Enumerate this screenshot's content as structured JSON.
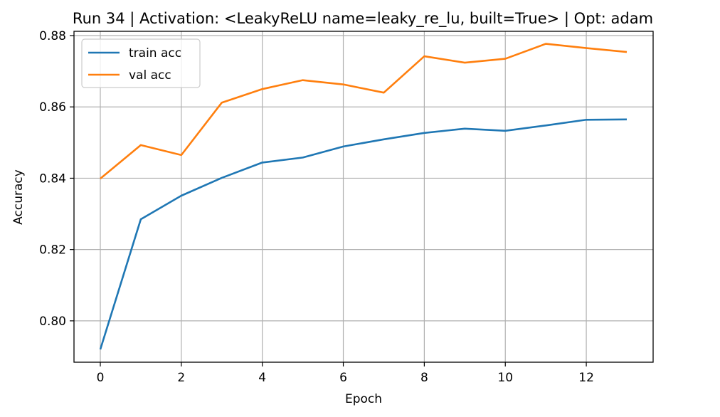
{
  "chart_data": {
    "type": "line",
    "title": "Run 34 | Activation: <LeakyReLU name=leaky_re_lu, built=True> | Opt: adam",
    "xlabel": "Epoch",
    "ylabel": "Accuracy",
    "x": [
      0,
      1,
      2,
      3,
      4,
      5,
      6,
      7,
      8,
      9,
      10,
      11,
      12,
      13
    ],
    "xlim": [
      -0.65,
      13.65
    ],
    "ylim": [
      0.7884,
      0.8812
    ],
    "xticks": [
      0,
      2,
      4,
      6,
      8,
      10,
      12
    ],
    "yticks": [
      0.8,
      0.82,
      0.84,
      0.86,
      0.88
    ],
    "xtick_labels": [
      "0",
      "2",
      "4",
      "6",
      "8",
      "10",
      "12"
    ],
    "ytick_labels": [
      "0.80",
      "0.82",
      "0.84",
      "0.86",
      "0.88"
    ],
    "grid": true,
    "legend_position": "top-left",
    "series": [
      {
        "name": "train acc",
        "color": "#1f77b4",
        "values": [
          0.792,
          0.8285,
          0.8351,
          0.8401,
          0.8444,
          0.8458,
          0.8489,
          0.8509,
          0.8527,
          0.8539,
          0.8533,
          0.8548,
          0.8564,
          0.8565
        ]
      },
      {
        "name": "val acc",
        "color": "#ff7f0e",
        "values": [
          0.8399,
          0.8493,
          0.8465,
          0.8612,
          0.865,
          0.8675,
          0.8663,
          0.864,
          0.8742,
          0.8724,
          0.8735,
          0.8777,
          0.8765,
          0.8754
        ]
      }
    ]
  }
}
